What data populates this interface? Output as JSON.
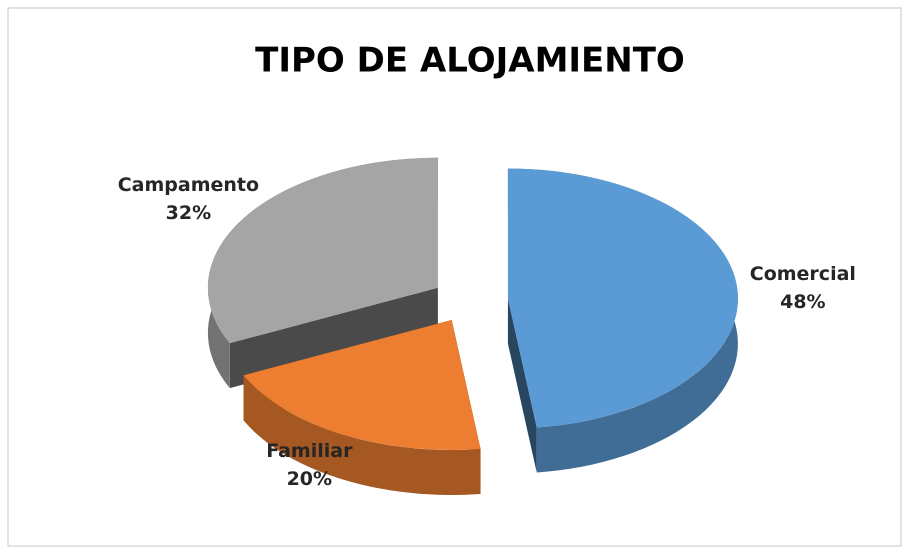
{
  "chart_data": {
    "type": "pie",
    "title": "TIPO DE ALOJAMIENTO",
    "categories": [
      "Comercial",
      "Familiar",
      "Campamento"
    ],
    "values": [
      48,
      20,
      32
    ],
    "value_labels": [
      "48%",
      "20%",
      "32%"
    ],
    "colors": [
      "#5b9bd5",
      "#ed7d31",
      "#a5a5a5"
    ]
  }
}
